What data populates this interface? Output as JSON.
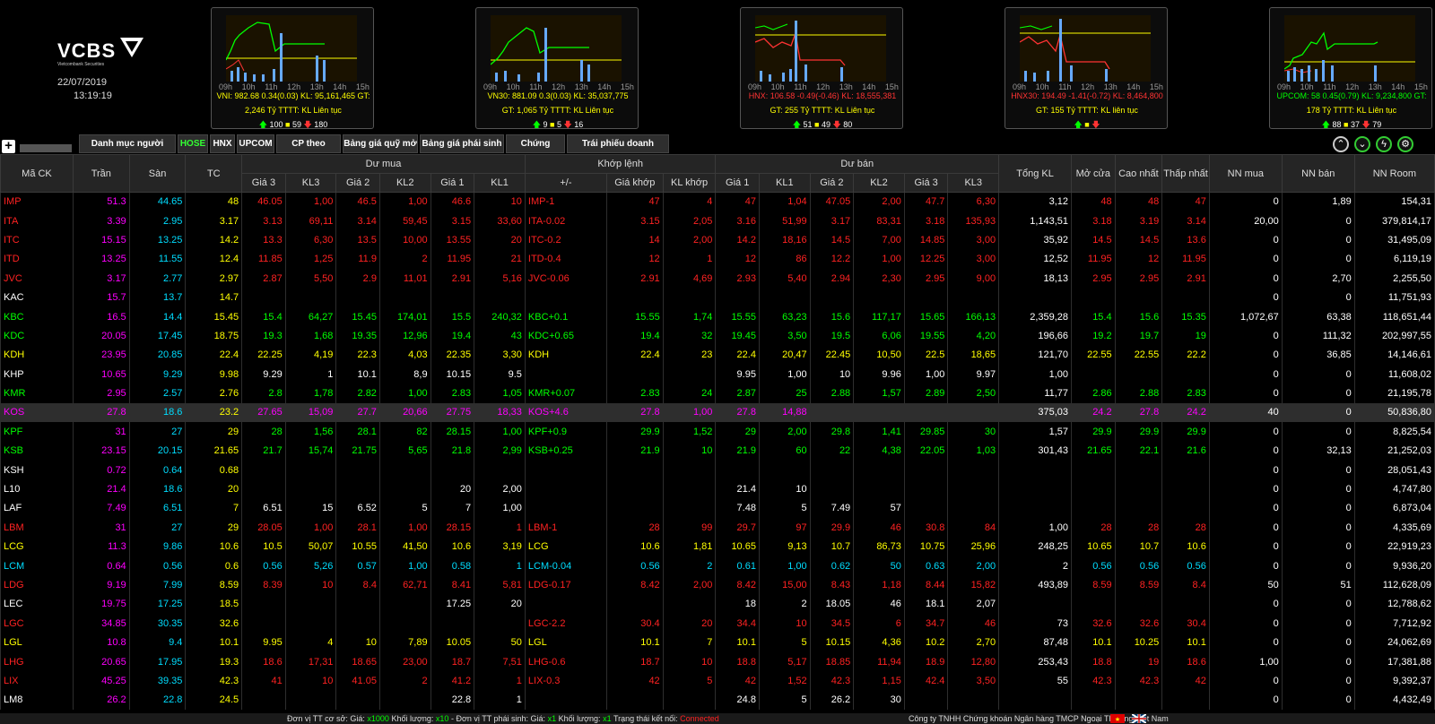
{
  "header": {
    "logo_text": "VCBS",
    "logo_sub": "Vietcombank Securities",
    "date": "22/07/2019",
    "time": "13:19:19"
  },
  "indices": [
    {
      "key": "vni",
      "line1": "VNI: 982.68  0.34(0.03)  KL: 95,161,465  GT:",
      "line1_color": "#ff0",
      "line2": "2,246 Tỷ TTTT: KL Liên tục",
      "up": "100",
      "eq": "59",
      "dn": "180",
      "hours": [
        "09h",
        "10h",
        "11h",
        "12h",
        "13h",
        "14h",
        "15h"
      ]
    },
    {
      "key": "vn30",
      "line1": "VN30: 881.09  0.3(0.03)  KL: 35,037,775",
      "line1_color": "#ff0",
      "line2": "GT: 1,065 Tỷ TTTT: KL Liên tục",
      "up": "9",
      "eq": "5",
      "dn": "16",
      "hours": [
        "09h",
        "10h",
        "11h",
        "12h",
        "13h",
        "14h",
        "15h"
      ]
    },
    {
      "key": "hnx",
      "line1": "HNX: 106.58  -0.49(-0.46)  KL: 18,555,381",
      "line1_color": "#f33",
      "line2": "GT: 255 Tỷ TTTT: KL Liên tục",
      "up": "51",
      "eq": "49",
      "dn": "80",
      "hours": [
        "09h",
        "10h",
        "11h",
        "12h",
        "13h",
        "14h",
        "15h"
      ]
    },
    {
      "key": "hnx30",
      "line1": "HNX30: 194.49  -1.41(-0.72)  KL: 8,464,800",
      "line1_color": "#f33",
      "line2": "GT: 155 Tỷ TTTT: KL liên tục",
      "up": "",
      "eq": "",
      "dn": "",
      "hours": [
        "09h",
        "10h",
        "11h",
        "12h",
        "13h",
        "14h",
        "15h"
      ]
    },
    {
      "key": "upcom",
      "line1": "UPCOM: 58  0.45(0.79)  KL: 9,234,800  GT:",
      "line1_color": "#0f0",
      "line2": "178 Tỷ TTTT: KL Liên tục",
      "up": "88",
      "eq": "37",
      "dn": "79",
      "hours": [
        "09h",
        "10h",
        "11h",
        "12h",
        "13h",
        "14h",
        "15h"
      ]
    }
  ],
  "tabs": [
    "Danh mục người dùng",
    "HOSE",
    "HNX",
    "UPCOM",
    "CP theo ngành",
    "Bảng giá quỹ mở",
    "Bảng giá phái sinh",
    "Chứng quyền",
    "Trái phiếu doanh nghiệp"
  ],
  "active_tab": "HOSE",
  "table": {
    "group_headers": {
      "du_mua": "Dư mua",
      "khop_lenh": "Khớp lệnh",
      "du_ban": "Dư bán"
    },
    "columns": [
      "Mã CK",
      "Trần",
      "Sàn",
      "TC",
      "Giá 3",
      "KL3",
      "Giá 2",
      "KL2",
      "Giá 1",
      "KL1",
      "+/-",
      "Giá khớp",
      "KL khớp",
      "Giá 1",
      "KL1",
      "Giá 2",
      "KL2",
      "Giá 3",
      "KL3",
      "Tổng KL",
      "Mở cửa",
      "Cao nhất",
      "Thấp nhất",
      "NN mua",
      "NN bán",
      "NN Room"
    ],
    "rows": [
      {
        "c": [
          "IMP",
          "51.3",
          "44.65",
          "48",
          "46.05",
          "1,00",
          "46.5",
          "1,00",
          "46.6",
          "10",
          "IMP-1",
          "47",
          "4",
          "47",
          "1,04",
          "47.05",
          "2,00",
          "47.7",
          "6,30",
          "3,12",
          "48",
          "48",
          "47",
          "0",
          "1,89",
          "154,31"
        ],
        "k": "R",
        "hl": false
      },
      {
        "c": [
          "ITA",
          "3.39",
          "2.95",
          "3.17",
          "3.13",
          "69,11",
          "3.14",
          "59,45",
          "3.15",
          "33,60",
          "ITA-0.02",
          "3.15",
          "2,05",
          "3.16",
          "51,99",
          "3.17",
          "83,31",
          "3.18",
          "135,93",
          "1,143,51",
          "3.18",
          "3.19",
          "3.14",
          "20,00",
          "0",
          "379,814,17"
        ],
        "k": "R",
        "hl": false
      },
      {
        "c": [
          "ITC",
          "15.15",
          "13.25",
          "14.2",
          "13.3",
          "6,30",
          "13.5",
          "10,00",
          "13.55",
          "20",
          "ITC-0.2",
          "14",
          "2,00",
          "14.2",
          "18,16",
          "14.5",
          "7,00",
          "14.85",
          "3,00",
          "35,92",
          "14.5",
          "14.5",
          "13.6",
          "0",
          "0",
          "31,495,09"
        ],
        "k": "R",
        "hl": false
      },
      {
        "c": [
          "ITD",
          "13.25",
          "11.55",
          "12.4",
          "11.85",
          "1,25",
          "11.9",
          "2",
          "11.95",
          "21",
          "ITD-0.4",
          "12",
          "1",
          "12",
          "86",
          "12.2",
          "1,00",
          "12.25",
          "3,00",
          "12,52",
          "11.95",
          "12",
          "11.95",
          "0",
          "0",
          "6,119,19"
        ],
        "k": "R",
        "hl": false
      },
      {
        "c": [
          "JVC",
          "3.17",
          "2.77",
          "2.97",
          "2.87",
          "5,50",
          "2.9",
          "11,01",
          "2.91",
          "5,16",
          "JVC-0.06",
          "2.91",
          "4,69",
          "2.93",
          "5,40",
          "2.94",
          "2,30",
          "2.95",
          "9,00",
          "18,13",
          "2.95",
          "2.95",
          "2.91",
          "0",
          "2,70",
          "2,255,50"
        ],
        "k": "R",
        "hl": false
      },
      {
        "c": [
          "KAC",
          "15.7",
          "13.7",
          "14.7",
          "",
          "",
          "",
          "",
          "",
          "",
          "",
          "",
          "",
          "",
          "",
          "",
          "",
          "",
          "",
          "",
          "",
          "",
          "",
          "0",
          "0",
          "11,751,93"
        ],
        "k": "W",
        "hl": false
      },
      {
        "c": [
          "KBC",
          "16.5",
          "14.4",
          "15.45",
          "15.4",
          "64,27",
          "15.45",
          "174,01",
          "15.5",
          "240,32",
          "KBC+0.1",
          "15.55",
          "1,74",
          "15.55",
          "63,23",
          "15.6",
          "117,17",
          "15.65",
          "166,13",
          "2,359,28",
          "15.4",
          "15.6",
          "15.35",
          "1,072,67",
          "63,38",
          "118,651,44"
        ],
        "k": "G",
        "hl": false
      },
      {
        "c": [
          "KDC",
          "20.05",
          "17.45",
          "18.75",
          "19.3",
          "1,68",
          "19.35",
          "12,96",
          "19.4",
          "43",
          "KDC+0.65",
          "19.4",
          "32",
          "19.45",
          "3,50",
          "19.5",
          "6,06",
          "19.55",
          "4,20",
          "196,66",
          "19.2",
          "19.7",
          "19",
          "0",
          "111,32",
          "202,997,55"
        ],
        "k": "G",
        "hl": false
      },
      {
        "c": [
          "KDH",
          "23.95",
          "20.85",
          "22.4",
          "22.25",
          "4,19",
          "22.3",
          "4,03",
          "22.35",
          "3,30",
          "KDH",
          "22.4",
          "23",
          "22.4",
          "20,47",
          "22.45",
          "10,50",
          "22.5",
          "18,65",
          "121,70",
          "22.55",
          "22.55",
          "22.2",
          "0",
          "36,85",
          "14,146,61"
        ],
        "k": "Y",
        "hl": false
      },
      {
        "c": [
          "KHP",
          "10.65",
          "9.29",
          "9.98",
          "9.29",
          "1",
          "10.1",
          "8,9",
          "10.15",
          "9.5",
          "",
          "",
          "",
          "9.95",
          "1,00",
          "10",
          "9.96",
          "1,00",
          "9.97",
          "1,00",
          "",
          "",
          "",
          "0",
          "0",
          "11,608,02"
        ],
        "k": "W",
        "hl": false
      },
      {
        "c": [
          "KMR",
          "2.95",
          "2.57",
          "2.76",
          "2.8",
          "1,78",
          "2.82",
          "1,00",
          "2.83",
          "1,05",
          "KMR+0.07",
          "2.83",
          "24",
          "2.87",
          "25",
          "2.88",
          "1,57",
          "2.89",
          "2,50",
          "11,77",
          "2.86",
          "2.88",
          "2.83",
          "0",
          "0",
          "21,195,78"
        ],
        "k": "G",
        "hl": false
      },
      {
        "c": [
          "KOS",
          "27.8",
          "18.6",
          "23.2",
          "27.65",
          "15,09",
          "27.7",
          "20,66",
          "27.75",
          "18,33",
          "KOS+4.6",
          "27.8",
          "1,00",
          "27.8",
          "14,88",
          "",
          "",
          "",
          "",
          "375,03",
          "24.2",
          "27.8",
          "24.2",
          "40",
          "0",
          "50,836,80"
        ],
        "k": "P",
        "hl": true
      },
      {
        "c": [
          "KPF",
          "31",
          "27",
          "29",
          "28",
          "1,56",
          "28.1",
          "82",
          "28.15",
          "1,00",
          "KPF+0.9",
          "29.9",
          "1,52",
          "29",
          "2,00",
          "29.8",
          "1,41",
          "29.85",
          "30",
          "1,57",
          "29.9",
          "29.9",
          "29.9",
          "0",
          "0",
          "8,825,54"
        ],
        "k": "G",
        "hl": false
      },
      {
        "c": [
          "KSB",
          "23.15",
          "20.15",
          "21.65",
          "21.7",
          "15,74",
          "21.75",
          "5,65",
          "21.8",
          "2,99",
          "KSB+0.25",
          "21.9",
          "10",
          "21.9",
          "60",
          "22",
          "4,38",
          "22.05",
          "1,03",
          "301,43",
          "21.65",
          "22.1",
          "21.6",
          "0",
          "32,13",
          "21,252,03"
        ],
        "k": "G",
        "hl": false
      },
      {
        "c": [
          "KSH",
          "0.72",
          "0.64",
          "0.68",
          "",
          "",
          "",
          "",
          "",
          "",
          "",
          "",
          "",
          "",
          "",
          "",
          "",
          "",
          "",
          "",
          "",
          "",
          "",
          "0",
          "0",
          "28,051,43"
        ],
        "k": "W",
        "hl": false
      },
      {
        "c": [
          "L10",
          "21.4",
          "18.6",
          "20",
          "",
          "",
          "",
          "",
          "20",
          "2,00",
          "",
          "",
          "",
          "21.4",
          "10",
          "",
          "",
          "",
          "",
          "",
          "",
          "",
          "",
          "0",
          "0",
          "4,747,80"
        ],
        "k": "W",
        "hl": false
      },
      {
        "c": [
          "LAF",
          "7.49",
          "6.51",
          "7",
          "6.51",
          "15",
          "6.52",
          "5",
          "7",
          "1,00",
          "",
          "",
          "",
          "7.48",
          "5",
          "7.49",
          "57",
          "",
          "",
          "",
          "",
          "",
          "",
          "0",
          "0",
          "6,873,04"
        ],
        "k": "W",
        "hl": false
      },
      {
        "c": [
          "LBM",
          "31",
          "27",
          "29",
          "28.05",
          "1,00",
          "28.1",
          "1,00",
          "28.15",
          "1",
          "LBM-1",
          "28",
          "99",
          "29.7",
          "97",
          "29.9",
          "46",
          "30.8",
          "84",
          "1,00",
          "28",
          "28",
          "28",
          "0",
          "0",
          "4,335,69"
        ],
        "k": "R",
        "hl": false
      },
      {
        "c": [
          "LCG",
          "11.3",
          "9.86",
          "10.6",
          "10.5",
          "50,07",
          "10.55",
          "41,50",
          "10.6",
          "3,19",
          "LCG",
          "10.6",
          "1,81",
          "10.65",
          "9,13",
          "10.7",
          "86,73",
          "10.75",
          "25,96",
          "248,25",
          "10.65",
          "10.7",
          "10.6",
          "0",
          "0",
          "22,919,23"
        ],
        "k": "Y",
        "hl": false
      },
      {
        "c": [
          "LCM",
          "0.64",
          "0.56",
          "0.6",
          "0.56",
          "5,26",
          "0.57",
          "1,00",
          "0.58",
          "1",
          "LCM-0.04",
          "0.56",
          "2",
          "0.61",
          "1,00",
          "0.62",
          "50",
          "0.63",
          "2,00",
          "2",
          "0.56",
          "0.56",
          "0.56",
          "0",
          "0",
          "9,936,20"
        ],
        "k": "C",
        "hl": false
      },
      {
        "c": [
          "LDG",
          "9.19",
          "7.99",
          "8.59",
          "8.39",
          "10",
          "8.4",
          "62,71",
          "8.41",
          "5,81",
          "LDG-0.17",
          "8.42",
          "2,00",
          "8.42",
          "15,00",
          "8.43",
          "1,18",
          "8.44",
          "15,82",
          "493,89",
          "8.59",
          "8.59",
          "8.4",
          "50",
          "51",
          "112,628,09"
        ],
        "k": "R",
        "hl": false
      },
      {
        "c": [
          "LEC",
          "19.75",
          "17.25",
          "18.5",
          "",
          "",
          "",
          "",
          "17.25",
          "20",
          "",
          "",
          "",
          "18",
          "2",
          "18.05",
          "46",
          "18.1",
          "2,07",
          "",
          "",
          "",
          "",
          "0",
          "0",
          "12,788,62"
        ],
        "k": "W",
        "hl": false
      },
      {
        "c": [
          "LGC",
          "34.85",
          "30.35",
          "32.6",
          "",
          "",
          "",
          "",
          "",
          "",
          "LGC-2.2",
          "30.4",
          "20",
          "34.4",
          "10",
          "34.5",
          "6",
          "34.7",
          "46",
          "73",
          "32.6",
          "32.6",
          "30.4",
          "0",
          "0",
          "7,712,92"
        ],
        "k": "R",
        "hl": false
      },
      {
        "c": [
          "LGL",
          "10.8",
          "9.4",
          "10.1",
          "9.95",
          "4",
          "10",
          "7,89",
          "10.05",
          "50",
          "LGL",
          "10.1",
          "7",
          "10.1",
          "5",
          "10.15",
          "4,36",
          "10.2",
          "2,70",
          "87,48",
          "10.1",
          "10.25",
          "10.1",
          "0",
          "0",
          "24,062,69"
        ],
        "k": "Y",
        "hl": false
      },
      {
        "c": [
          "LHG",
          "20.65",
          "17.95",
          "19.3",
          "18.6",
          "17,31",
          "18.65",
          "23,00",
          "18.7",
          "7,51",
          "LHG-0.6",
          "18.7",
          "10",
          "18.8",
          "5,17",
          "18.85",
          "11,94",
          "18.9",
          "12,80",
          "253,43",
          "18.8",
          "19",
          "18.6",
          "1,00",
          "0",
          "17,381,88"
        ],
        "k": "R",
        "hl": false
      },
      {
        "c": [
          "LIX",
          "45.25",
          "39.35",
          "42.3",
          "41",
          "10",
          "41.05",
          "2",
          "41.2",
          "1",
          "LIX-0.3",
          "42",
          "5",
          "42",
          "1,52",
          "42.3",
          "1,15",
          "42.4",
          "3,50",
          "55",
          "42.3",
          "42.3",
          "42",
          "0",
          "0",
          "9,392,37"
        ],
        "k": "R",
        "hl": false
      },
      {
        "c": [
          "LM8",
          "26.2",
          "22.8",
          "24.5",
          "",
          "",
          "",
          "",
          "22.8",
          "1",
          "",
          "",
          "",
          "24.8",
          "5",
          "26.2",
          "30",
          "",
          "",
          "",
          "",
          "",
          "",
          "0",
          "0",
          "4,432,49"
        ],
        "k": "W",
        "hl": false
      }
    ]
  },
  "footer": {
    "text_a": "Đơn vị TT cơ sở: Giá:",
    "val_a": "x1000",
    "text_b": "Khối lượng:",
    "val_b": "x10",
    "text_c": "- Đơn vị TT phái sinh: Giá:",
    "val_c": "x1",
    "text_d": "Khối lượng:",
    "val_d": "x1",
    "text_e": "Trạng thái kết nối:",
    "status": "Connected",
    "company": "Công ty TNHH Chứng khoán Ngân hàng TMCP Ngoại Thương Việt Nam"
  },
  "colors": {
    "up": "#00ff00",
    "down": "#ff2222",
    "ref": "#ffff00",
    "ceil": "#ff00ff",
    "floor": "#00ddff"
  }
}
